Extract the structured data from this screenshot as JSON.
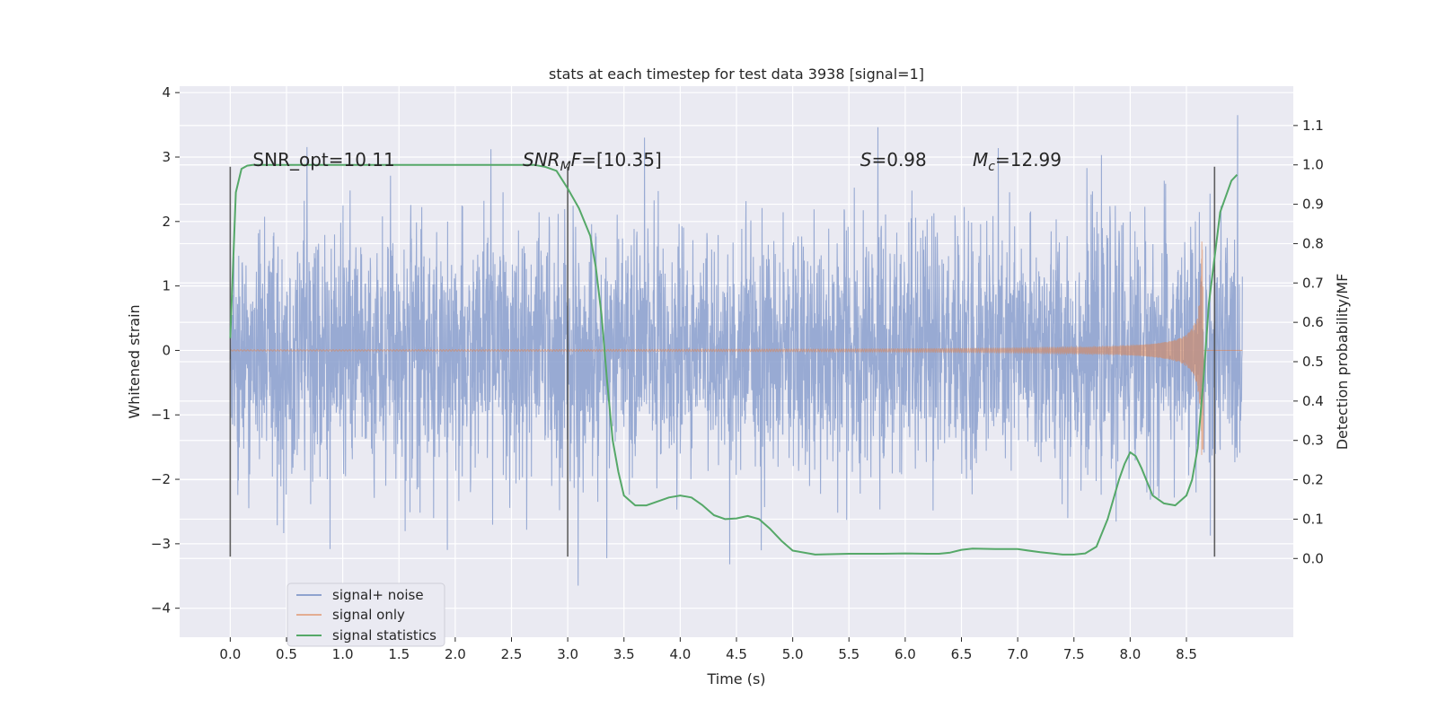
{
  "chart_data": {
    "type": "line",
    "title": "stats at each timestep for test data 3938 [signal=1]",
    "xlabel": "Time (s)",
    "ylabel": "Whitened strain",
    "y2label": "Detection probability/MF",
    "xlim": [
      -0.45,
      9.45
    ],
    "ylim": [
      -4.45,
      4.1
    ],
    "y2lim": [
      -0.2,
      1.2
    ],
    "xticks": [
      0.0,
      0.5,
      1.0,
      1.5,
      2.0,
      2.5,
      3.0,
      3.5,
      4.0,
      4.5,
      5.0,
      5.5,
      6.0,
      6.5,
      7.0,
      7.5,
      8.0,
      8.5
    ],
    "yticks": [
      -4,
      -3,
      -2,
      -1,
      0,
      1,
      2,
      3,
      4
    ],
    "y2ticks": [
      0.0,
      0.1,
      0.2,
      0.3,
      0.4,
      0.5,
      0.6,
      0.7,
      0.8,
      0.9,
      1.0,
      1.1
    ],
    "grid": true,
    "legend_position": "lower-left",
    "annotations": [
      {
        "x": 0.2,
        "y": 3.0,
        "text": "SNR_opt=10.11",
        "style": "plain"
      },
      {
        "x": 2.6,
        "y": 3.0,
        "base": "SNR",
        "sub": "M",
        "rest": "F=[10.35]",
        "style": "math"
      },
      {
        "x": 5.6,
        "y": 3.0,
        "base": "S",
        "sub": "",
        "rest": "=0.98",
        "style": "math"
      },
      {
        "x": 6.6,
        "y": 3.0,
        "base": "M",
        "sub": "c",
        "rest": "=12.99",
        "style": "math"
      }
    ],
    "vlines": [
      {
        "x": 0.0,
        "ymin": -3.2,
        "ymax": 2.85
      },
      {
        "x": 3.0,
        "ymin": -3.2,
        "ymax": 2.85
      },
      {
        "x": 8.75,
        "ymin": -3.2,
        "ymax": 2.85
      }
    ],
    "series": [
      {
        "name": "signal+ noise",
        "color": "#8fa3cf",
        "kind": "noise",
        "x_range": [
          0.0,
          9.0
        ],
        "sigma": 0.95,
        "max_abs": 3.65
      },
      {
        "name": "signal only",
        "color": "#dd8452",
        "kind": "chirp",
        "x_range": [
          0.0,
          9.0
        ],
        "merger_time": 8.65,
        "peak_amplitude": 1.9
      },
      {
        "name": "signal statistics",
        "color": "#55a868",
        "kind": "line",
        "axis": "y2",
        "x": [
          0.0,
          0.05,
          0.1,
          0.15,
          0.2,
          0.5,
          1.0,
          1.5,
          2.0,
          2.5,
          2.7,
          2.8,
          2.9,
          3.0,
          3.1,
          3.2,
          3.25,
          3.3,
          3.35,
          3.4,
          3.45,
          3.5,
          3.6,
          3.7,
          3.8,
          3.9,
          4.0,
          4.1,
          4.2,
          4.3,
          4.4,
          4.5,
          4.6,
          4.7,
          4.8,
          4.9,
          5.0,
          5.2,
          5.5,
          5.8,
          6.0,
          6.2,
          6.3,
          6.4,
          6.5,
          6.6,
          6.8,
          7.0,
          7.2,
          7.4,
          7.5,
          7.6,
          7.7,
          7.8,
          7.9,
          7.95,
          8.0,
          8.05,
          8.1,
          8.2,
          8.3,
          8.4,
          8.5,
          8.55,
          8.6,
          8.65,
          8.7,
          8.8,
          8.9,
          8.95
        ],
        "values": [
          0.56,
          0.93,
          0.99,
          0.998,
          1.0,
          1.0,
          1.0,
          1.0,
          1.0,
          1.0,
          1.0,
          0.995,
          0.985,
          0.94,
          0.89,
          0.82,
          0.74,
          0.62,
          0.45,
          0.3,
          0.22,
          0.16,
          0.135,
          0.135,
          0.145,
          0.155,
          0.16,
          0.155,
          0.135,
          0.11,
          0.1,
          0.102,
          0.108,
          0.1,
          0.075,
          0.045,
          0.02,
          0.01,
          0.012,
          0.012,
          0.013,
          0.012,
          0.012,
          0.015,
          0.022,
          0.025,
          0.024,
          0.024,
          0.016,
          0.01,
          0.01,
          0.013,
          0.03,
          0.1,
          0.2,
          0.24,
          0.27,
          0.26,
          0.23,
          0.16,
          0.14,
          0.135,
          0.16,
          0.2,
          0.28,
          0.45,
          0.65,
          0.88,
          0.96,
          0.975
        ]
      }
    ]
  }
}
